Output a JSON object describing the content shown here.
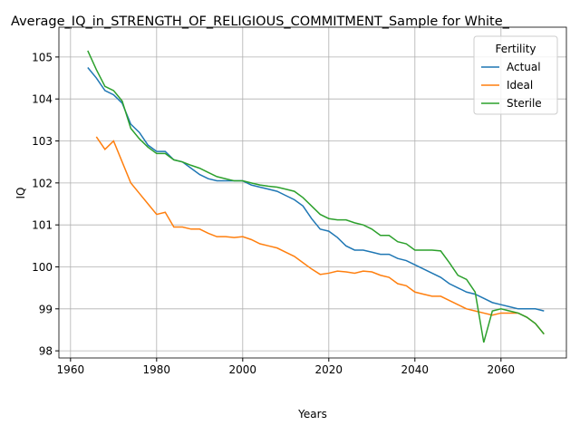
{
  "chart_data": {
    "type": "line",
    "title": "Average_IQ_in_STRENGTH_OF_RELIGIOUS_COMMITMENT_Sample for White_",
    "x_label": "Years",
    "y_label": "IQ",
    "x": [
      1964,
      1966,
      1968,
      1970,
      1972,
      1974,
      1976,
      1978,
      1980,
      1982,
      1984,
      1986,
      1988,
      1990,
      1992,
      1994,
      1996,
      1998,
      2000,
      2002,
      2004,
      2006,
      2008,
      2010,
      2012,
      2014,
      2016,
      2018,
      2020,
      2022,
      2024,
      2026,
      2028,
      2030,
      2032,
      2034,
      2036,
      2038,
      2040,
      2042,
      2044,
      2046,
      2048,
      2050,
      2052,
      2054,
      2056,
      2058,
      2060,
      2062,
      2064,
      2066,
      2068,
      2070
    ],
    "series": [
      {
        "name": "Actual",
        "color": "#1f77b4",
        "values": [
          104.75,
          104.5,
          104.2,
          104.1,
          103.9,
          103.4,
          103.2,
          102.9,
          102.75,
          102.75,
          102.55,
          102.5,
          102.35,
          102.2,
          102.1,
          102.05,
          102.05,
          102.05,
          102.05,
          101.95,
          101.9,
          101.85,
          101.8,
          101.7,
          101.6,
          101.45,
          101.15,
          100.9,
          100.85,
          100.7,
          100.5,
          100.4,
          100.4,
          100.35,
          100.3,
          100.3,
          100.2,
          100.15,
          100.05,
          99.95,
          99.85,
          99.75,
          99.6,
          99.5,
          99.4,
          99.35,
          99.25,
          99.15,
          99.1,
          99.05,
          99.0,
          99.0,
          99.0,
          98.95
        ]
      },
      {
        "name": "Ideal",
        "color": "#ff7f0e",
        "values": [
          null,
          103.1,
          102.8,
          103.0,
          102.5,
          102.0,
          101.75,
          101.5,
          101.25,
          101.3,
          100.95,
          100.95,
          100.9,
          100.9,
          100.8,
          100.72,
          100.72,
          100.7,
          100.72,
          100.65,
          100.55,
          100.5,
          100.45,
          100.35,
          100.25,
          100.1,
          99.95,
          99.82,
          99.85,
          99.9,
          99.88,
          99.85,
          99.9,
          99.88,
          99.8,
          99.75,
          99.6,
          99.55,
          99.4,
          99.35,
          99.3,
          99.3,
          99.2,
          99.1,
          99.0,
          98.95,
          98.9,
          98.85,
          98.9,
          98.9,
          98.9,
          98.8,
          98.65,
          98.4
        ]
      },
      {
        "name": "Sterile",
        "color": "#2ca02c",
        "values": [
          105.15,
          104.7,
          104.3,
          104.2,
          103.95,
          103.3,
          103.05,
          102.85,
          102.7,
          102.7,
          102.55,
          102.5,
          102.42,
          102.35,
          102.25,
          102.15,
          102.1,
          102.05,
          102.05,
          102.0,
          101.95,
          101.92,
          101.9,
          101.85,
          101.8,
          101.65,
          101.45,
          101.25,
          101.15,
          101.12,
          101.12,
          101.05,
          101.0,
          100.9,
          100.75,
          100.75,
          100.6,
          100.55,
          100.4,
          100.4,
          100.4,
          100.38,
          100.1,
          99.8,
          99.7,
          99.4,
          98.2,
          98.95,
          99.0,
          98.95,
          98.9,
          98.8,
          98.65,
          98.4
        ]
      }
    ],
    "xlim": [
      1957.3,
      2075.2
    ],
    "ylim": [
      97.83,
      105.71
    ],
    "xticks": [
      1960,
      1980,
      2000,
      2020,
      2040,
      2060
    ],
    "yticks": [
      98,
      99,
      100,
      101,
      102,
      103,
      104,
      105
    ],
    "grid": true,
    "legend": "upper right",
    "legend_title": "Fertility"
  }
}
